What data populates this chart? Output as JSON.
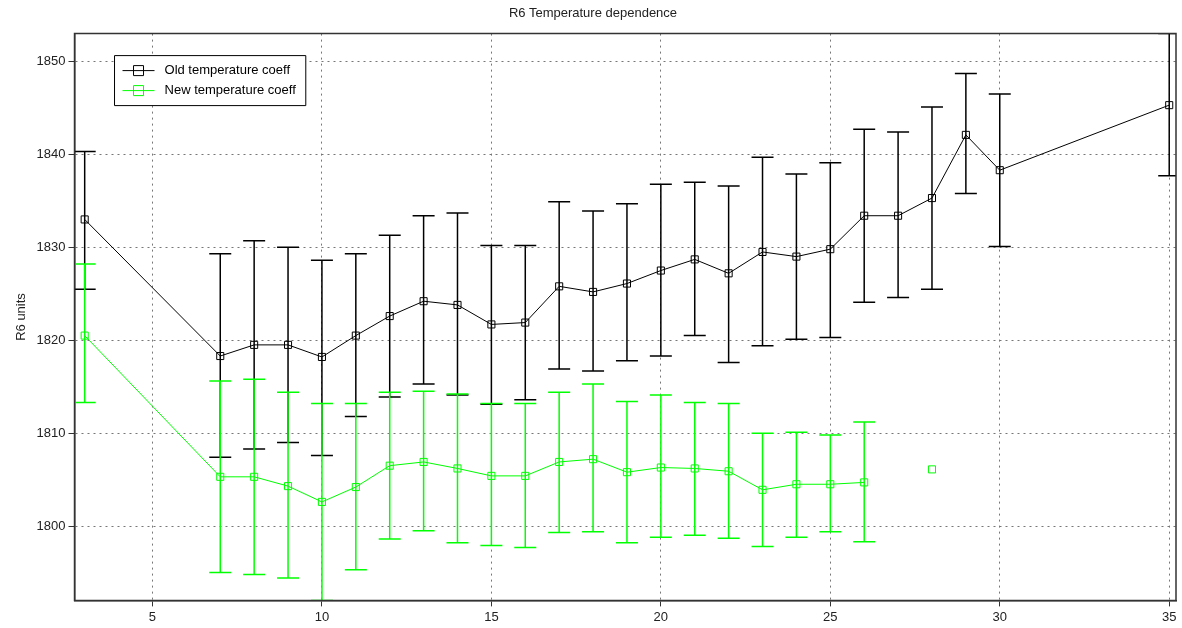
{
  "chart_data": {
    "type": "line",
    "title": "R6 Temperature dependence",
    "ylabel": "R6 units",
    "xlim": [
      2.7,
      35.2
    ],
    "xticks": [
      5,
      10,
      15,
      20,
      25,
      30,
      35
    ],
    "ylim": [
      1792,
      1853
    ],
    "yticks": [
      1800,
      1810,
      1820,
      1830,
      1840,
      1850
    ],
    "grid": true,
    "legend": "top left",
    "marker": "square",
    "line_style": "solid",
    "series": [
      {
        "name": "Old temperature coeff",
        "color": "#000000",
        "x": [
          3,
          7,
          8,
          9,
          10,
          11,
          12,
          13,
          14,
          15,
          16,
          17,
          18,
          19,
          20,
          21,
          22,
          23,
          24,
          25,
          26,
          27,
          28,
          29,
          30,
          35
        ],
        "values": [
          1833,
          1818.3,
          1819.5,
          1819.5,
          1818.2,
          1820.5,
          1822.6,
          1824.2,
          1823.8,
          1821.7,
          1821.9,
          1825.8,
          1825.2,
          1826.1,
          1827.5,
          1828.7,
          1827.2,
          1829.5,
          1829,
          1829.8,
          1833.4,
          1833.4,
          1835.3,
          1842.1,
          1838.3,
          1845.3
        ],
        "errors": [
          [
            1825.5,
            1840.3
          ],
          [
            1807.4,
            1829.3
          ],
          [
            1808.3,
            1830.7
          ],
          [
            1809,
            1830
          ],
          [
            1807.6,
            1828.6
          ],
          [
            1811.8,
            1829.3
          ],
          [
            1813.9,
            1831.3
          ],
          [
            1815.3,
            1833.4
          ],
          [
            1814.1,
            1833.7
          ],
          [
            1813.1,
            1830.2
          ],
          [
            1813.6,
            1830.2
          ],
          [
            1816.9,
            1834.9
          ],
          [
            1816.7,
            1833.9
          ],
          [
            1817.8,
            1834.7
          ],
          [
            1818.3,
            1836.8
          ],
          [
            1820.5,
            1837
          ],
          [
            1817.6,
            1836.6
          ],
          [
            1819.4,
            1839.7
          ],
          [
            1820.1,
            1837.9
          ],
          [
            1820.3,
            1839.1
          ],
          [
            1824.1,
            1842.7
          ],
          [
            1824.6,
            1842.4
          ],
          [
            1825.5,
            1845.1
          ],
          [
            1835.8,
            1848.7
          ],
          [
            1830.1,
            1846.5
          ],
          [
            1837.7,
            1853
          ]
        ]
      },
      {
        "name": "New temperature coeff",
        "color": "#00ff00",
        "x": [
          3,
          7,
          8,
          9,
          10,
          11,
          12,
          13,
          14,
          15,
          16,
          17,
          18,
          19,
          20,
          21,
          22,
          23,
          24,
          25,
          26,
          27,
          28
        ],
        "values": [
          1820.5,
          1805.3,
          1805.3,
          1804.3,
          1802.6,
          1804.2,
          1806.5,
          1806.9,
          1806.2,
          1805.4,
          1805.4,
          1806.9,
          1807.2,
          1805.8,
          1806.3,
          1806.2,
          1805.9,
          1803.9,
          1804.5,
          1804.5,
          1804.7,
          null,
          1806.1
        ],
        "errors": [
          [
            1813.3,
            1828.2
          ],
          [
            1795,
            1815.6
          ],
          [
            1794.8,
            1815.8
          ],
          [
            1794.4,
            1814.4
          ],
          [
            1792,
            1813.2
          ],
          [
            1795.3,
            1813.2
          ],
          [
            1798.6,
            1814.4
          ],
          [
            1799.5,
            1814.5
          ],
          [
            1798.2,
            1814.2
          ],
          [
            1797.9,
            1813.2
          ],
          [
            1797.7,
            1813.2
          ],
          [
            1799.3,
            1814.4
          ],
          [
            1799.4,
            1815.3
          ],
          [
            1798.2,
            1813.4
          ],
          [
            1798.8,
            1814.1
          ],
          [
            1799,
            1813.3
          ],
          [
            1798.7,
            1813.2
          ],
          [
            1797.8,
            1810
          ],
          [
            1798.8,
            1810.1
          ],
          [
            1799.4,
            1809.8
          ],
          [
            1798.3,
            1811.2
          ],
          null,
          null
        ]
      }
    ]
  }
}
